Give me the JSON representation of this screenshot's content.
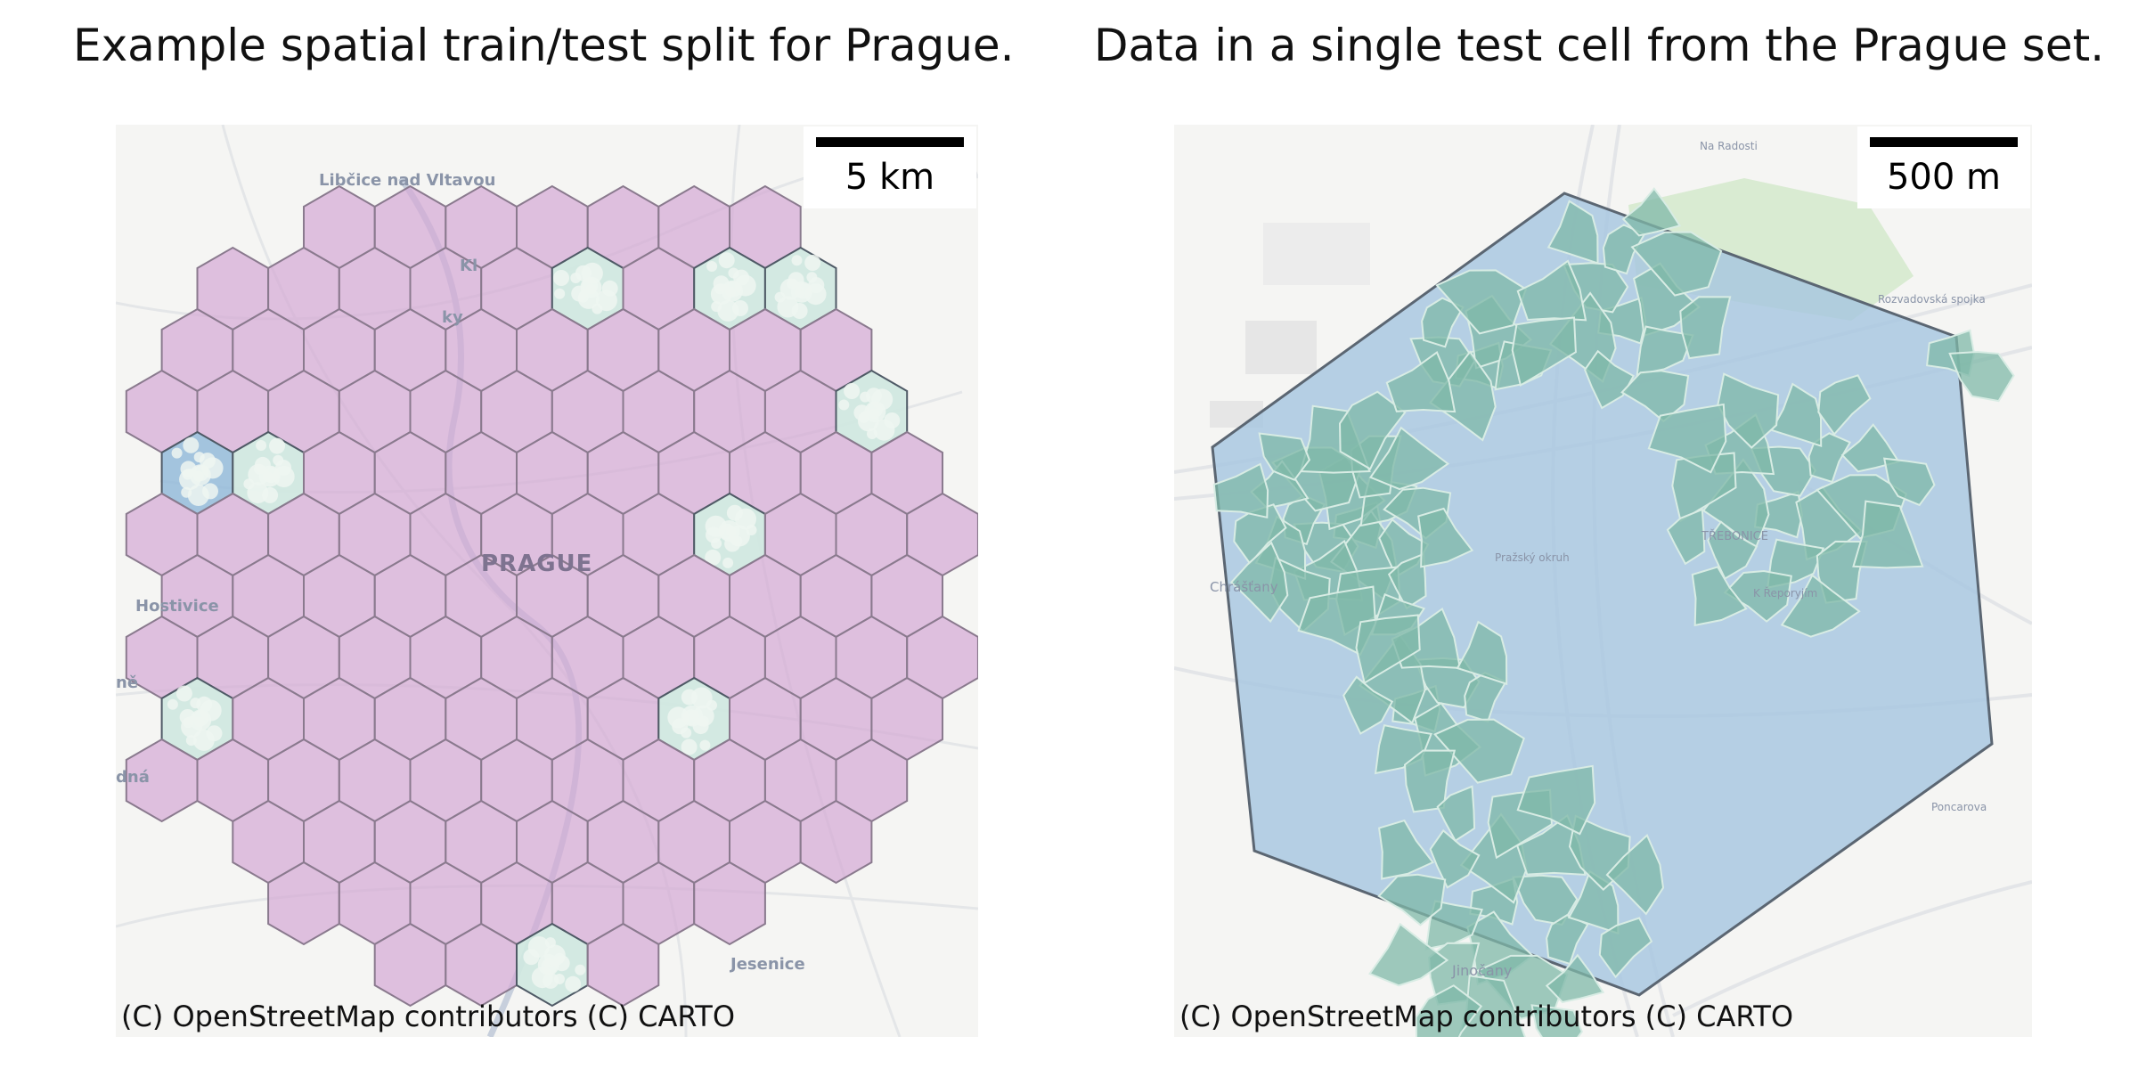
{
  "panels": {
    "left": {
      "title": "Example spatial train/test split for Prague.",
      "scale_label": "5 km",
      "attribution": "(C) OpenStreetMap contributors (C) CARTO",
      "places": {
        "libcice": "Libčice nad Vltavou",
        "kl": "Kl",
        "ky": "ky",
        "prague": "PRAGUE",
        "hostivice": "Hostivice",
        "ne": "ně",
        "dna": "dná",
        "jesenice": "Jesenice"
      },
      "colors": {
        "train": "#d4a8d4",
        "test": "#8fb8d8",
        "building": "#cfe8e0"
      }
    },
    "right": {
      "title": "Data in a single test cell from the Prague set.",
      "scale_label": "500 m",
      "attribution": "(C) OpenStreetMap contributors (C) CARTO",
      "places": {
        "chrastany": "Chrášťany",
        "jinocany": "Jinočany",
        "rudna_area": "TŘEBONICE",
        "prazsky_okruh": "Pražský okruh",
        "na_radosti": "Na Radosti",
        "rozvadovska": "Rozvadovská spojka",
        "poncarova": "Poncarova",
        "k_reporyjim": "K Řeporyjím"
      },
      "colors": {
        "cell": "#a5c6e0",
        "building": "#7fb8a8",
        "park": "#cfe8c4"
      }
    }
  }
}
